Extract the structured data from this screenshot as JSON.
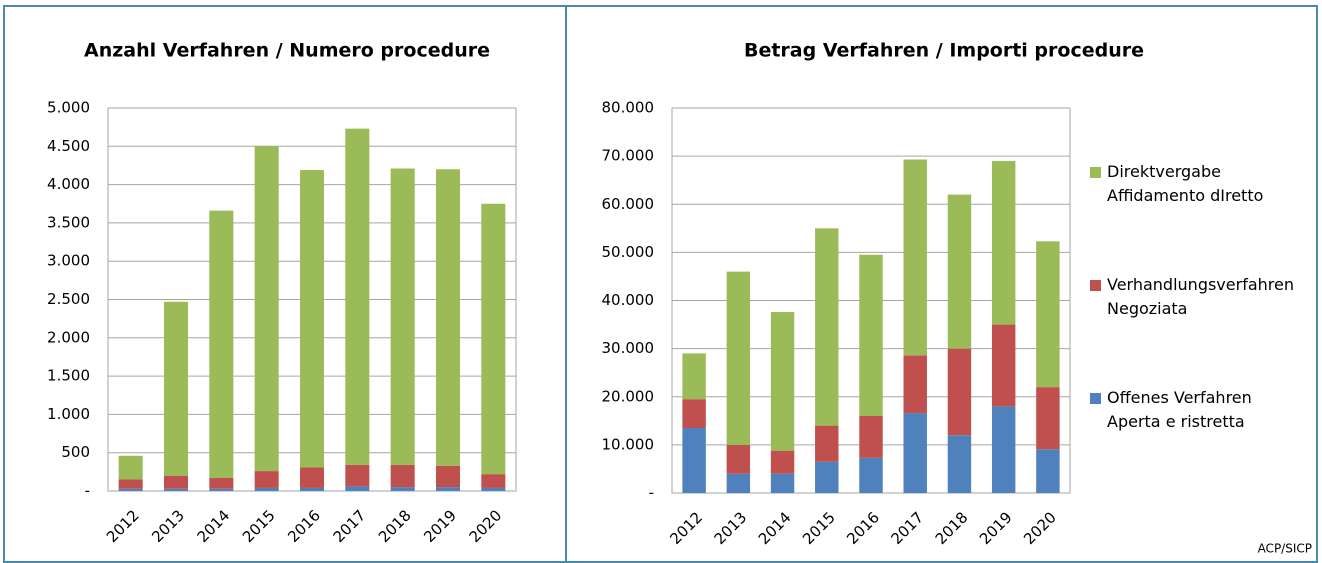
{
  "chart_data": [
    {
      "type": "stacked_bar",
      "title": "Anzahl Verfahren / Numero procedure",
      "categories": [
        "2012",
        "2013",
        "2014",
        "2015",
        "2016",
        "2017",
        "2018",
        "2019",
        "2020"
      ],
      "series": [
        {
          "color": "#4f81bd",
          "values": [
            30,
            30,
            30,
            40,
            40,
            60,
            50,
            50,
            40
          ]
        },
        {
          "color": "#c0504d",
          "values": [
            120,
            170,
            140,
            220,
            270,
            280,
            290,
            280,
            180
          ]
        },
        {
          "color": "#9bbb59",
          "values": [
            310,
            2270,
            3490,
            4240,
            3880,
            4390,
            3870,
            3870,
            3530
          ]
        }
      ],
      "ylim": [
        0,
        5000
      ],
      "yticks": [
        {
          "value": 0,
          "label": "-"
        },
        500,
        {
          "value": 1000,
          "label": "1.000"
        },
        {
          "value": 1500,
          "label": "1.500"
        },
        {
          "value": 2000,
          "label": "2.000"
        },
        {
          "value": 2500,
          "label": "2.500"
        },
        {
          "value": 3000,
          "label": "3.000"
        },
        {
          "value": 3500,
          "label": "3.500"
        },
        {
          "value": 4000,
          "label": "4.000"
        },
        {
          "value": 4500,
          "label": "4.500"
        },
        {
          "value": 5000,
          "label": "5.000"
        }
      ],
      "grid": true
    },
    {
      "type": "stacked_bar",
      "title": "Betrag Verfahren / Importi procedure",
      "categories": [
        "2012",
        "2013",
        "2014",
        "2015",
        "2016",
        "2017",
        "2018",
        "2019",
        "2020"
      ],
      "series": [
        {
          "name": "Offenes Verfahren\nAperta e ristretta",
          "color": "#4f81bd",
          "values": [
            13500,
            4000,
            4000,
            6500,
            7300,
            16600,
            12000,
            18000,
            9100
          ]
        },
        {
          "name": "Verhandlungsverfahren\nNegoziata",
          "color": "#c0504d",
          "values": [
            6000,
            6000,
            4800,
            7500,
            8700,
            12000,
            18000,
            17000,
            12900
          ]
        },
        {
          "name": "Direktvergabe\nAffidamento dIretto",
          "color": "#9bbb59",
          "values": [
            9500,
            36000,
            28800,
            41000,
            33500,
            40700,
            32000,
            34000,
            30300
          ]
        }
      ],
      "ylim": [
        0,
        80000
      ],
      "yticks": [
        {
          "value": 0,
          "label": "-"
        },
        {
          "value": 10000,
          "label": "10.000"
        },
        {
          "value": 20000,
          "label": "20.000"
        },
        {
          "value": 30000,
          "label": "30.000"
        },
        {
          "value": 40000,
          "label": "40.000"
        },
        {
          "value": 50000,
          "label": "50.000"
        },
        {
          "value": 60000,
          "label": "60.000"
        },
        {
          "value": 70000,
          "label": "70.000"
        },
        {
          "value": 80000,
          "label": "80.000"
        }
      ],
      "grid": true,
      "legend": "right"
    }
  ],
  "source": "ACP/SICP"
}
